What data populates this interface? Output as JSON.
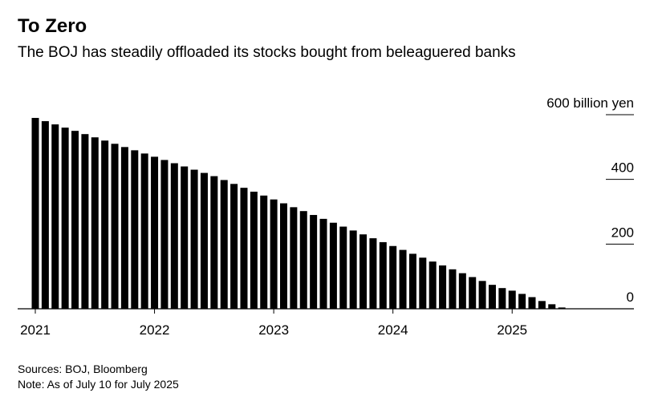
{
  "chart_data": {
    "type": "bar",
    "title": "To Zero",
    "subtitle": "The BOJ has steadily offloaded its stocks bought from beleaguered banks",
    "source": "Sources: BOJ, Bloomberg",
    "note": "Note: As of July 10 for July 2025",
    "categories": [
      "2021",
      null,
      null,
      null,
      null,
      null,
      null,
      null,
      null,
      null,
      null,
      null,
      "2022",
      null,
      null,
      null,
      null,
      null,
      null,
      null,
      null,
      null,
      null,
      null,
      "2023",
      null,
      null,
      null,
      null,
      null,
      null,
      null,
      null,
      null,
      null,
      null,
      "2024",
      null,
      null,
      null,
      null,
      null,
      null,
      null,
      null,
      null,
      null,
      null,
      "2025",
      null,
      null,
      null,
      null,
      null,
      null
    ],
    "values": [
      590,
      580,
      570,
      560,
      550,
      540,
      530,
      520,
      510,
      500,
      490,
      480,
      470,
      460,
      450,
      440,
      430,
      420,
      410,
      398,
      386,
      374,
      362,
      350,
      338,
      326,
      314,
      302,
      290,
      278,
      266,
      254,
      242,
      230,
      218,
      206,
      194,
      182,
      170,
      158,
      146,
      134,
      122,
      110,
      98,
      86,
      74,
      64,
      56,
      46,
      36,
      24,
      14,
      4,
      1
    ],
    "color": "#000000",
    "ylim": [
      0,
      600
    ],
    "yticks": [
      0,
      200,
      400,
      {
        "value": 600,
        "label": "600 billion yen"
      }
    ],
    "grid": true
  }
}
